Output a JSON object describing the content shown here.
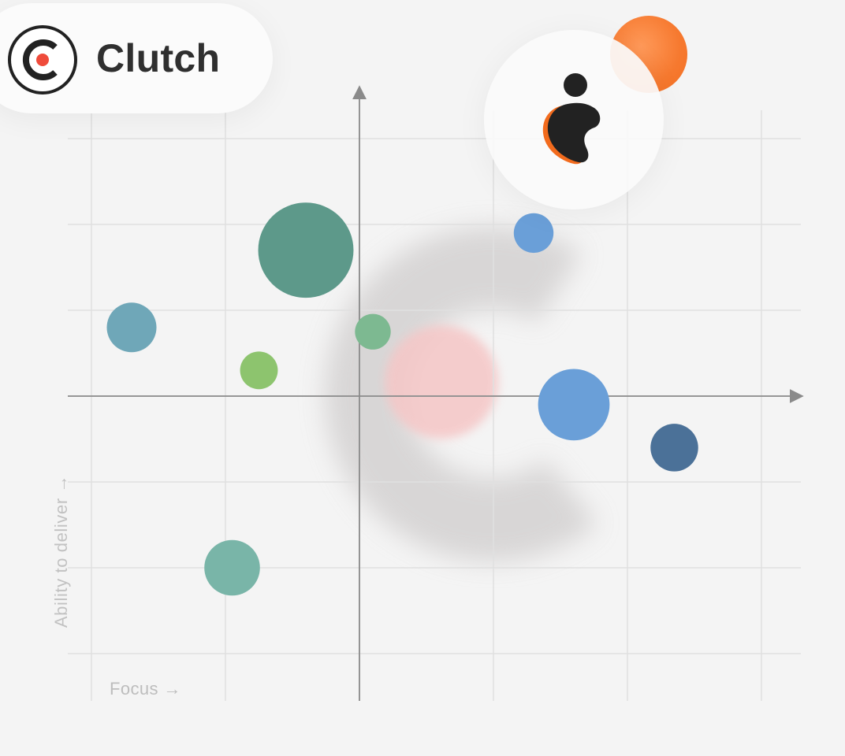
{
  "brand": {
    "name": "Clutch",
    "mark_icon": "clutch-c-logo-icon",
    "mark_dot_color": "#ef4b3b",
    "mark_ring_color": "#222222"
  },
  "badge": {
    "icon": "person-figure-icon",
    "accent_color": "#f4772c"
  },
  "chart_data": {
    "type": "scatter",
    "title": "",
    "xlabel": "Focus →",
    "ylabel": "Ability to deliver →",
    "grid": true,
    "xlim": [
      -4,
      6
    ],
    "ylim": [
      -3,
      3
    ],
    "points": [
      {
        "x": 2.6,
        "y": 1.9,
        "size": 2.0,
        "color": "#6a9fd8"
      },
      {
        "x": -3.4,
        "y": 0.8,
        "size": 2.5,
        "color": "#6fa7b8"
      },
      {
        "x": -0.8,
        "y": 1.7,
        "size": 4.8,
        "color": "#5d998a"
      },
      {
        "x": 0.2,
        "y": 0.75,
        "size": 1.8,
        "color": "#7db991"
      },
      {
        "x": -1.5,
        "y": 0.3,
        "size": 1.9,
        "color": "#8dc46e"
      },
      {
        "x": 3.2,
        "y": -0.1,
        "size": 3.6,
        "color": "#6a9fd8"
      },
      {
        "x": 4.7,
        "y": -0.6,
        "size": 2.4,
        "color": "#4b7198"
      },
      {
        "x": -1.9,
        "y": -2.0,
        "size": 2.8,
        "color": "#79b5a8"
      }
    ]
  }
}
